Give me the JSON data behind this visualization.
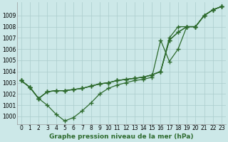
{
  "xlabel": "Graphe pression niveau de la mer (hPa)",
  "x_hours": [
    0,
    1,
    2,
    3,
    4,
    5,
    6,
    7,
    8,
    9,
    10,
    11,
    12,
    13,
    14,
    15,
    16,
    17,
    18,
    19,
    20,
    21,
    22,
    23
  ],
  "series": [
    [
      1003.2,
      1002.6,
      1001.6,
      1001.0,
      1000.2,
      999.6,
      999.9,
      1000.5,
      1001.2,
      1002.0,
      1002.5,
      1002.8,
      1003.0,
      1003.2,
      1003.3,
      1003.5,
      1006.8,
      1004.9,
      1006.0,
      1008.0,
      1008.0,
      1009.0,
      1009.5,
      1009.8
    ],
    [
      1003.2,
      1002.6,
      1001.6,
      1002.2,
      1002.3,
      1002.3,
      1002.4,
      1002.5,
      1002.7,
      1002.9,
      1003.0,
      1003.2,
      1003.3,
      1003.4,
      1003.5,
      1003.7,
      1004.0,
      1007.0,
      1008.0,
      1008.0,
      1008.0,
      1009.0,
      1009.5,
      1009.8
    ],
    [
      1003.2,
      1002.6,
      1001.6,
      1002.2,
      1002.3,
      1002.3,
      1002.4,
      1002.5,
      1002.7,
      1002.9,
      1003.0,
      1003.2,
      1003.3,
      1003.4,
      1003.5,
      1003.7,
      1004.0,
      1006.8,
      1007.5,
      1008.0,
      1008.0,
      1009.0,
      1009.5,
      1009.8
    ],
    [
      1003.2,
      1002.6,
      1001.6,
      1002.2,
      1002.3,
      1002.3,
      1002.4,
      1002.5,
      1002.7,
      1002.9,
      1003.0,
      1003.2,
      1003.3,
      1003.4,
      1003.5,
      1003.7,
      1004.0,
      1006.8,
      1007.5,
      1008.0,
      1008.0,
      1009.0,
      1009.5,
      1009.8
    ]
  ],
  "line_color": "#2d6a2d",
  "marker": "+",
  "markersize": 4,
  "markeredgewidth": 1.0,
  "linewidth": 0.9,
  "bg_color": "#cce8e8",
  "grid_color": "#aacccc",
  "ylim": [
    999.3,
    1010.2
  ],
  "yticks": [
    1000,
    1001,
    1002,
    1003,
    1004,
    1005,
    1006,
    1007,
    1008,
    1009
  ],
  "xticks": [
    0,
    1,
    2,
    3,
    4,
    5,
    6,
    7,
    8,
    9,
    10,
    11,
    12,
    13,
    14,
    15,
    16,
    17,
    18,
    19,
    20,
    21,
    22,
    23
  ],
  "tick_fontsize": 5.5,
  "xlabel_fontsize": 6.5,
  "xlabel_fontweight": "bold"
}
